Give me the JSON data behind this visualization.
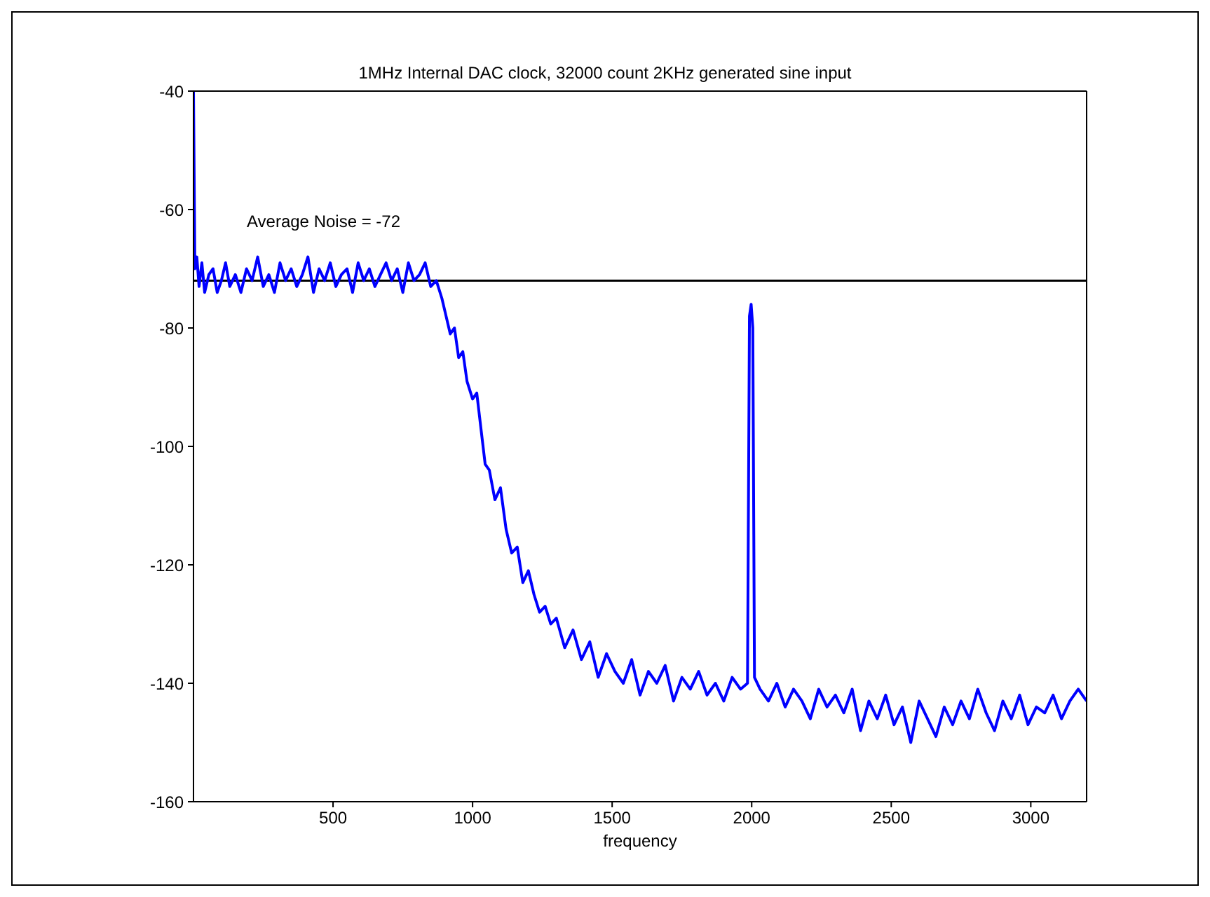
{
  "chart_data": {
    "type": "line",
    "title": "1MHz Internal DAC clock, 32000 count 2KHz generated sine input",
    "xlabel": "frequency",
    "xlim": [
      0,
      3200
    ],
    "xticks": [
      500,
      1000,
      1500,
      2000,
      2500,
      3000
    ],
    "ylim": [
      -160,
      -40
    ],
    "yticks": [
      -160,
      -140,
      -120,
      -100,
      -80,
      -60,
      -40
    ],
    "ref_lines": [
      {
        "axis": "y",
        "value": -72,
        "label": "Average Noise = -72",
        "color": "#000000"
      }
    ],
    "series": [
      {
        "color": "#0000ff",
        "x": [
          0,
          5,
          12,
          20,
          30,
          40,
          55,
          70,
          85,
          100,
          115,
          130,
          150,
          170,
          190,
          210,
          230,
          250,
          270,
          290,
          310,
          330,
          350,
          370,
          390,
          410,
          430,
          450,
          470,
          490,
          510,
          530,
          550,
          570,
          590,
          610,
          630,
          650,
          670,
          690,
          710,
          730,
          750,
          770,
          790,
          810,
          830,
          850,
          870,
          890,
          905,
          920,
          935,
          950,
          965,
          980,
          1000,
          1015,
          1030,
          1045,
          1060,
          1080,
          1100,
          1120,
          1140,
          1160,
          1180,
          1200,
          1220,
          1240,
          1260,
          1280,
          1300,
          1330,
          1360,
          1390,
          1420,
          1450,
          1480,
          1510,
          1540,
          1570,
          1600,
          1630,
          1660,
          1690,
          1720,
          1750,
          1780,
          1810,
          1840,
          1870,
          1900,
          1930,
          1960,
          1985,
          1992,
          1998,
          2004,
          2010,
          2030,
          2060,
          2090,
          2120,
          2150,
          2180,
          2210,
          2240,
          2270,
          2300,
          2330,
          2360,
          2390,
          2420,
          2450,
          2480,
          2510,
          2540,
          2570,
          2600,
          2630,
          2660,
          2690,
          2720,
          2750,
          2780,
          2810,
          2840,
          2870,
          2900,
          2930,
          2960,
          2990,
          3020,
          3050,
          3080,
          3110,
          3140,
          3170,
          3200
        ],
        "values": [
          -40,
          -70,
          -68,
          -73,
          -69,
          -74,
          -71,
          -70,
          -74,
          -72,
          -69,
          -73,
          -71,
          -74,
          -70,
          -72,
          -68,
          -73,
          -71,
          -74,
          -69,
          -72,
          -70,
          -73,
          -71,
          -68,
          -74,
          -70,
          -72,
          -69,
          -73,
          -71,
          -70,
          -74,
          -69,
          -72,
          -70,
          -73,
          -71,
          -69,
          -72,
          -70,
          -74,
          -69,
          -72,
          -71,
          -69,
          -73,
          -72,
          -75,
          -78,
          -81,
          -80,
          -85,
          -84,
          -89,
          -92,
          -91,
          -97,
          -103,
          -104,
          -109,
          -107,
          -114,
          -118,
          -117,
          -123,
          -121,
          -125,
          -128,
          -127,
          -130,
          -129,
          -134,
          -131,
          -136,
          -133,
          -139,
          -135,
          -138,
          -140,
          -136,
          -142,
          -138,
          -140,
          -137,
          -143,
          -139,
          -141,
          -138,
          -142,
          -140,
          -143,
          -139,
          -141,
          -140,
          -78,
          -76,
          -80,
          -139,
          -141,
          -143,
          -140,
          -144,
          -141,
          -143,
          -146,
          -141,
          -144,
          -142,
          -145,
          -141,
          -148,
          -143,
          -146,
          -142,
          -147,
          -144,
          -150,
          -143,
          -146,
          -149,
          -144,
          -147,
          -143,
          -146,
          -141,
          -145,
          -148,
          -143,
          -146,
          -142,
          -147,
          -144,
          -145,
          -142,
          -146,
          -143,
          -141,
          -143
        ]
      }
    ]
  }
}
